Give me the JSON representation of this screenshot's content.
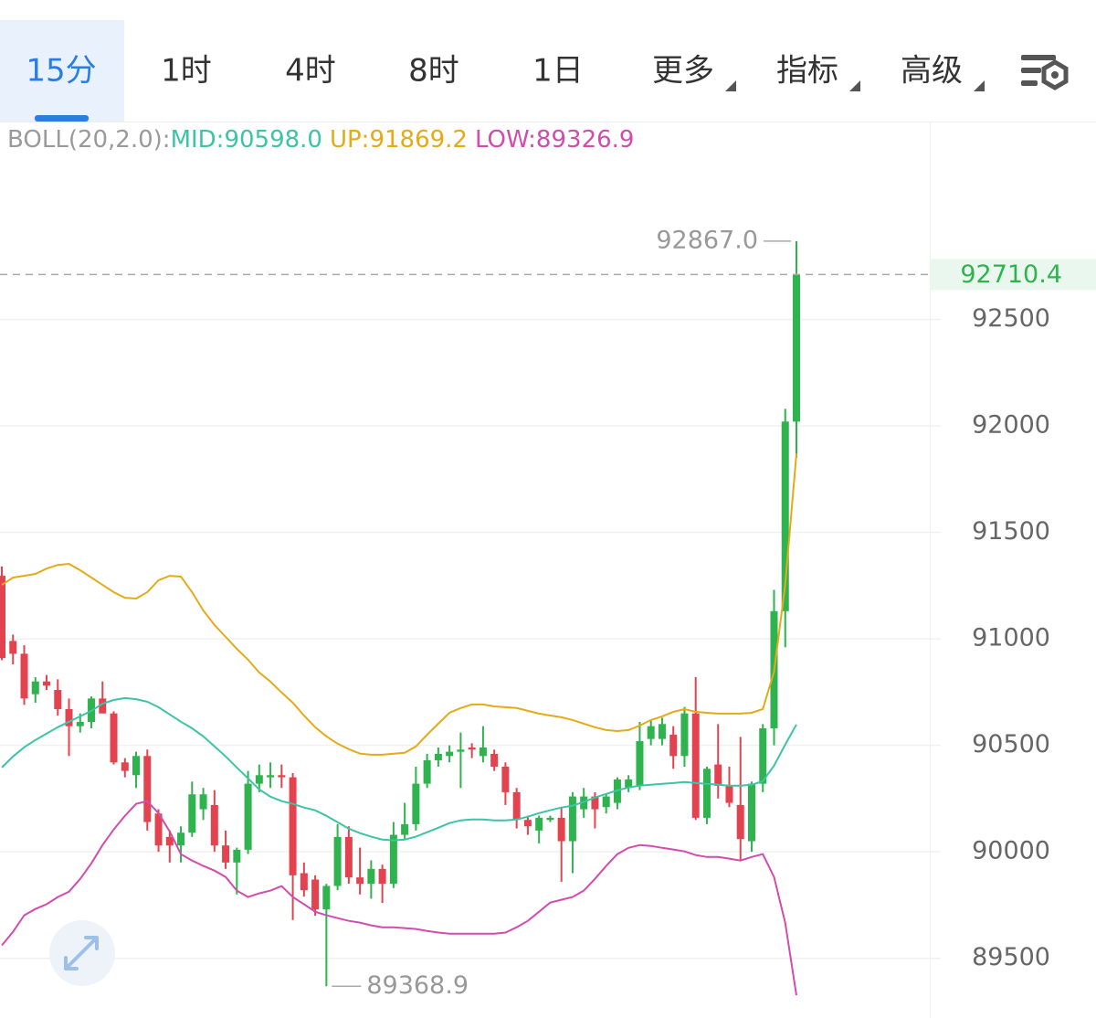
{
  "tabs": [
    "15分",
    "1时",
    "4时",
    "8时",
    "1日",
    "更多",
    "指标",
    "高级"
  ],
  "chart_data": {
    "type": "candlestick",
    "indicator": "BOLL(20,2.0):",
    "up_color": "#2fb34f",
    "down_color": "#e3434f",
    "ylim": [
      89220,
      93420
    ],
    "yticks": [
      89500,
      90000,
      90500,
      91000,
      91500,
      92000,
      92500
    ],
    "grid": true,
    "last_price": 92710.4,
    "annotations": [
      {
        "value": 92867.0,
        "label": "92867.0"
      },
      {
        "value": 89368.9,
        "label": "89368.9"
      }
    ],
    "open": [
      91296,
      90990,
      90930,
      90740,
      90800,
      90760,
      90670,
      90590,
      90610,
      90720,
      90650,
      90420,
      90360,
      90450,
      90180,
      90070,
      90030,
      90090,
      90200,
      90220,
      90030,
      89950,
      90010,
      90320,
      90350,
      90360,
      90350,
      89900,
      89870,
      89730,
      89840,
      90070,
      89880,
      89850,
      89920,
      89850,
      90080,
      90130,
      90320,
      90430,
      90450,
      90470,
      90490,
      90450,
      90460,
      90400,
      90280,
      90150,
      90100,
      90150,
      90160,
      90050,
      90200,
      90260,
      90210,
      90230,
      90300,
      90310,
      90530,
      90530,
      90550,
      90450,
      90650,
      90160,
      90410,
      90310,
      90220,
      90050,
      90320,
      90580,
      91130,
      92020
    ],
    "high": [
      91340,
      91020,
      90970,
      90820,
      90830,
      90810,
      90720,
      90650,
      90730,
      90800,
      90660,
      90440,
      90470,
      90480,
      90200,
      90100,
      90120,
      90330,
      90300,
      90290,
      90100,
      90020,
      90380,
      90410,
      90420,
      90410,
      90370,
      89950,
      89890,
      89850,
      90130,
      90120,
      90020,
      89960,
      89940,
      90140,
      90230,
      90400,
      90460,
      90490,
      90500,
      90560,
      90510,
      90590,
      90480,
      90420,
      90300,
      90170,
      90170,
      90170,
      90210,
      90280,
      90300,
      90280,
      90270,
      90350,
      90360,
      90610,
      90620,
      90630,
      90590,
      90680,
      90820,
      90400,
      90600,
      90400,
      90540,
      90330,
      90600,
      91230,
      92080,
      92867
    ],
    "low": [
      90900,
      90880,
      90690,
      90700,
      90760,
      90640,
      90450,
      90560,
      90580,
      90650,
      90410,
      90350,
      90300,
      90100,
      90000,
      89950,
      89950,
      90070,
      90150,
      90000,
      89920,
      89800,
      89990,
      90280,
      90300,
      90300,
      89680,
      89790,
      89700,
      89368.9,
      89820,
      89850,
      89800,
      89780,
      89760,
      89830,
      90060,
      90100,
      90300,
      90400,
      90420,
      90300,
      90440,
      90420,
      90380,
      90220,
      90110,
      90080,
      90040,
      90140,
      89860,
      89900,
      90160,
      90110,
      90180,
      90200,
      90280,
      90290,
      90500,
      90500,
      90390,
      90400,
      90150,
      90130,
      90250,
      90210,
      89960,
      90000,
      90280,
      90500,
      90960,
      91850
    ],
    "close": [
      90910,
      90930,
      90720,
      90800,
      90780,
      90670,
      90590,
      90610,
      90720,
      90650,
      90420,
      90380,
      90450,
      90140,
      90030,
      90030,
      90090,
      90270,
      90270,
      90030,
      89950,
      90010,
      90320,
      90360,
      90360,
      90350,
      89890,
      89820,
      89730,
      89840,
      90070,
      89880,
      89850,
      89920,
      89850,
      90080,
      90130,
      90320,
      90430,
      90460,
      90470,
      90480,
      90480,
      90490,
      90400,
      90280,
      90150,
      90120,
      90160,
      90160,
      90050,
      90260,
      90260,
      90200,
      90260,
      90340,
      90340,
      90520,
      90590,
      90600,
      90450,
      90650,
      90160,
      90390,
      90310,
      90230,
      90060,
      90320,
      90580,
      91130,
      92020,
      92710.4
    ],
    "series": [
      {
        "name": "MID:90598.0",
        "color": "#3cc4a6",
        "values": [
          90396,
          90448,
          90491,
          90525,
          90555,
          90585,
          90611,
          90636,
          90662,
          90696,
          90713,
          90722,
          90717,
          90705,
          90679,
          90645,
          90611,
          90580,
          90542,
          90495,
          90448,
          90396,
          90345,
          90293,
          90259,
          90238,
          90225,
          90208,
          90195,
          90169,
          90139,
          90109,
          90088,
          90071,
          90058,
          90054,
          90058,
          90071,
          90092,
          90113,
          90135,
          90148,
          90152,
          90152,
          90148,
          90148,
          90152,
          90165,
          90182,
          90195,
          90208,
          90217,
          90234,
          90255,
          90272,
          90289,
          90302,
          90311,
          90315,
          90319,
          90323,
          90328,
          90323,
          90319,
          90315,
          90311,
          90311,
          90315,
          90332,
          90405,
          90503,
          90598.0
        ]
      },
      {
        "name": "UP:91869.2",
        "color": "#e5aa17",
        "values": [
          91253,
          91288,
          91296,
          91305,
          91330,
          91347,
          91352,
          91322,
          91288,
          91253,
          91219,
          91193,
          91189,
          91219,
          91275,
          91296,
          91292,
          91219,
          91133,
          91065,
          91009,
          90953,
          90902,
          90842,
          90799,
          90748,
          90700,
          90640,
          90585,
          90542,
          90508,
          90482,
          90461,
          90456,
          90456,
          90461,
          90465,
          90495,
          90550,
          90602,
          90653,
          90675,
          90692,
          90692,
          90683,
          90679,
          90675,
          90662,
          90649,
          90640,
          90632,
          90619,
          90602,
          90585,
          90572,
          90567,
          90572,
          90593,
          90619,
          90636,
          90657,
          90670,
          90657,
          90653,
          90649,
          90649,
          90649,
          90653,
          90670,
          90846,
          91253,
          91869.2
        ]
      },
      {
        "name": "LOW:89326.9",
        "color": "#d14cae",
        "values": [
          89561,
          89625,
          89702,
          89732,
          89754,
          89788,
          89813,
          89873,
          89946,
          90032,
          90105,
          90169,
          90225,
          90238,
          90182,
          90096,
          89989,
          89959,
          89934,
          89912,
          89882,
          89818,
          89788,
          89805,
          89818,
          89839,
          89788,
          89754,
          89719,
          89702,
          89689,
          89676,
          89668,
          89655,
          89646,
          89646,
          89642,
          89638,
          89629,
          89621,
          89616,
          89616,
          89616,
          89616,
          89616,
          89621,
          89646,
          89676,
          89719,
          89762,
          89775,
          89788,
          89818,
          89873,
          89934,
          89989,
          90019,
          90032,
          90028,
          90019,
          90011,
          90002,
          89985,
          89976,
          89976,
          89968,
          89959,
          89976,
          89989,
          89882,
          89668,
          89326.9
        ]
      }
    ]
  }
}
